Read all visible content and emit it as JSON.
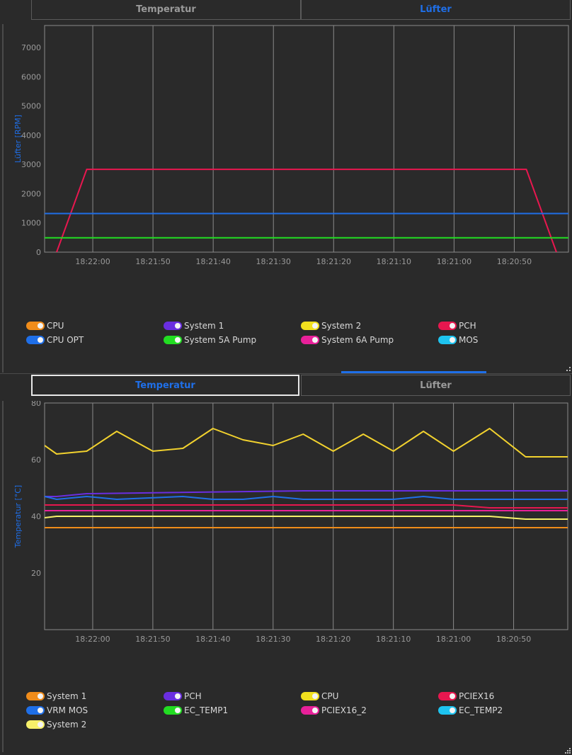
{
  "top_tabs": [
    {
      "label": "Temperatur",
      "active": false
    },
    {
      "label": "Lüfter",
      "active": true
    }
  ],
  "bottom_tabs": [
    {
      "label": "Temperatur",
      "active": true
    },
    {
      "label": "Lüfter",
      "active": false
    }
  ],
  "colors": {
    "accent": "#1f6fe8",
    "background": "#2a2a2a",
    "grid": "#8a8a8a"
  },
  "fan_chart": {
    "ylabel": "Lüfter [RPM]",
    "legend": [
      {
        "name": "CPU",
        "color": "#f08c1a"
      },
      {
        "name": "System 1",
        "color": "#6a2ee0"
      },
      {
        "name": "System 2",
        "color": "#f2e01e"
      },
      {
        "name": "PCH",
        "color": "#e8174f"
      },
      {
        "name": "CPU OPT",
        "color": "#1f6fe8"
      },
      {
        "name": "System 5A Pump",
        "color": "#22dd22"
      },
      {
        "name": "System 6A Pump",
        "color": "#e8209a"
      },
      {
        "name": "MOS",
        "color": "#1ec4f0"
      }
    ]
  },
  "temp_chart": {
    "ylabel": "Temperatur [°C]",
    "legend": [
      {
        "name": "System 1",
        "color": "#f08c1a"
      },
      {
        "name": "PCH",
        "color": "#6a2ee0"
      },
      {
        "name": "CPU",
        "color": "#f2e01e"
      },
      {
        "name": "PCIEX16",
        "color": "#e8174f"
      },
      {
        "name": "VRM MOS",
        "color": "#1f6fe8"
      },
      {
        "name": "EC_TEMP1",
        "color": "#22dd22"
      },
      {
        "name": "PCIEX16_2",
        "color": "#e8209a"
      },
      {
        "name": "EC_TEMP2",
        "color": "#1ec4f0"
      },
      {
        "name": "System 2",
        "color": "#f6f06a"
      }
    ]
  },
  "chart_data": [
    {
      "type": "line",
      "title": "",
      "xlabel": "",
      "ylabel": "Lüfter [RPM]",
      "ylim": [
        0,
        7750
      ],
      "yticks": [
        0,
        1000,
        2000,
        3000,
        4000,
        5000,
        6000,
        7000
      ],
      "x_tick_labels": [
        "18:22:00",
        "18:21:50",
        "18:21:40",
        "18:21:30",
        "18:21:20",
        "18:21:10",
        "18:21:00",
        "18:20:50"
      ],
      "x_tick_positions": [
        8,
        18,
        28,
        38,
        48,
        58,
        68,
        78
      ],
      "xlim": [
        0,
        87
      ],
      "grid": true,
      "legend_position": "bottom",
      "series": [
        {
          "name": "PCH",
          "color": "#e8174f",
          "x": [
            2,
            7,
            80,
            85
          ],
          "values": [
            0,
            2830,
            2830,
            0
          ]
        },
        {
          "name": "CPU OPT",
          "color": "#1f6fe8",
          "x": [
            0,
            87
          ],
          "values": [
            1320,
            1320
          ]
        },
        {
          "name": "System 5A Pump",
          "color": "#22dd22",
          "x": [
            0,
            87
          ],
          "values": [
            490,
            490
          ]
        }
      ]
    },
    {
      "type": "line",
      "title": "",
      "xlabel": "",
      "ylabel": "Temperatur [°C]",
      "ylim": [
        0,
        80
      ],
      "yticks": [
        20,
        40,
        60,
        80
      ],
      "x_tick_labels": [
        "18:22:00",
        "18:21:50",
        "18:21:40",
        "18:21:30",
        "18:21:20",
        "18:21:10",
        "18:21:00",
        "18:20:50"
      ],
      "x_tick_positions": [
        8,
        18,
        28,
        38,
        48,
        58,
        68,
        78
      ],
      "xlim": [
        0,
        87
      ],
      "grid": true,
      "legend_position": "bottom",
      "series": [
        {
          "name": "CPU",
          "color": "#f2d22e",
          "x": [
            0,
            2,
            7,
            12,
            18,
            23,
            28,
            33,
            38,
            43,
            48,
            53,
            58,
            63,
            68,
            74,
            80,
            87
          ],
          "values": [
            65,
            62,
            63,
            70,
            63,
            64,
            71,
            67,
            65,
            69,
            63,
            69,
            63,
            70,
            63,
            71,
            61,
            61
          ]
        },
        {
          "name": "PCH",
          "color": "#6a2ee0",
          "x": [
            0,
            2,
            7,
            43,
            87
          ],
          "values": [
            47,
            47,
            48,
            49,
            49
          ]
        },
        {
          "name": "VRM MOS",
          "color": "#1f6fe8",
          "x": [
            0,
            2,
            7,
            12,
            23,
            28,
            33,
            38,
            43,
            58,
            63,
            68,
            87
          ],
          "values": [
            47,
            46,
            47,
            46,
            47,
            46,
            46,
            47,
            46,
            46,
            47,
            46,
            46
          ]
        },
        {
          "name": "PCIEX16",
          "color": "#e8174f",
          "x": [
            0,
            68,
            74,
            87
          ],
          "values": [
            44,
            44,
            43,
            43
          ]
        },
        {
          "name": "PCIEX16_2",
          "color": "#e8209a",
          "x": [
            0,
            87
          ],
          "values": [
            42,
            42
          ]
        },
        {
          "name": "System 2",
          "color": "#f6f06a",
          "x": [
            0,
            2,
            74,
            80,
            87
          ],
          "values": [
            39.5,
            40,
            40,
            39,
            39
          ]
        },
        {
          "name": "System 1",
          "color": "#f08c1a",
          "x": [
            0,
            87
          ],
          "values": [
            36,
            36
          ]
        }
      ]
    }
  ]
}
